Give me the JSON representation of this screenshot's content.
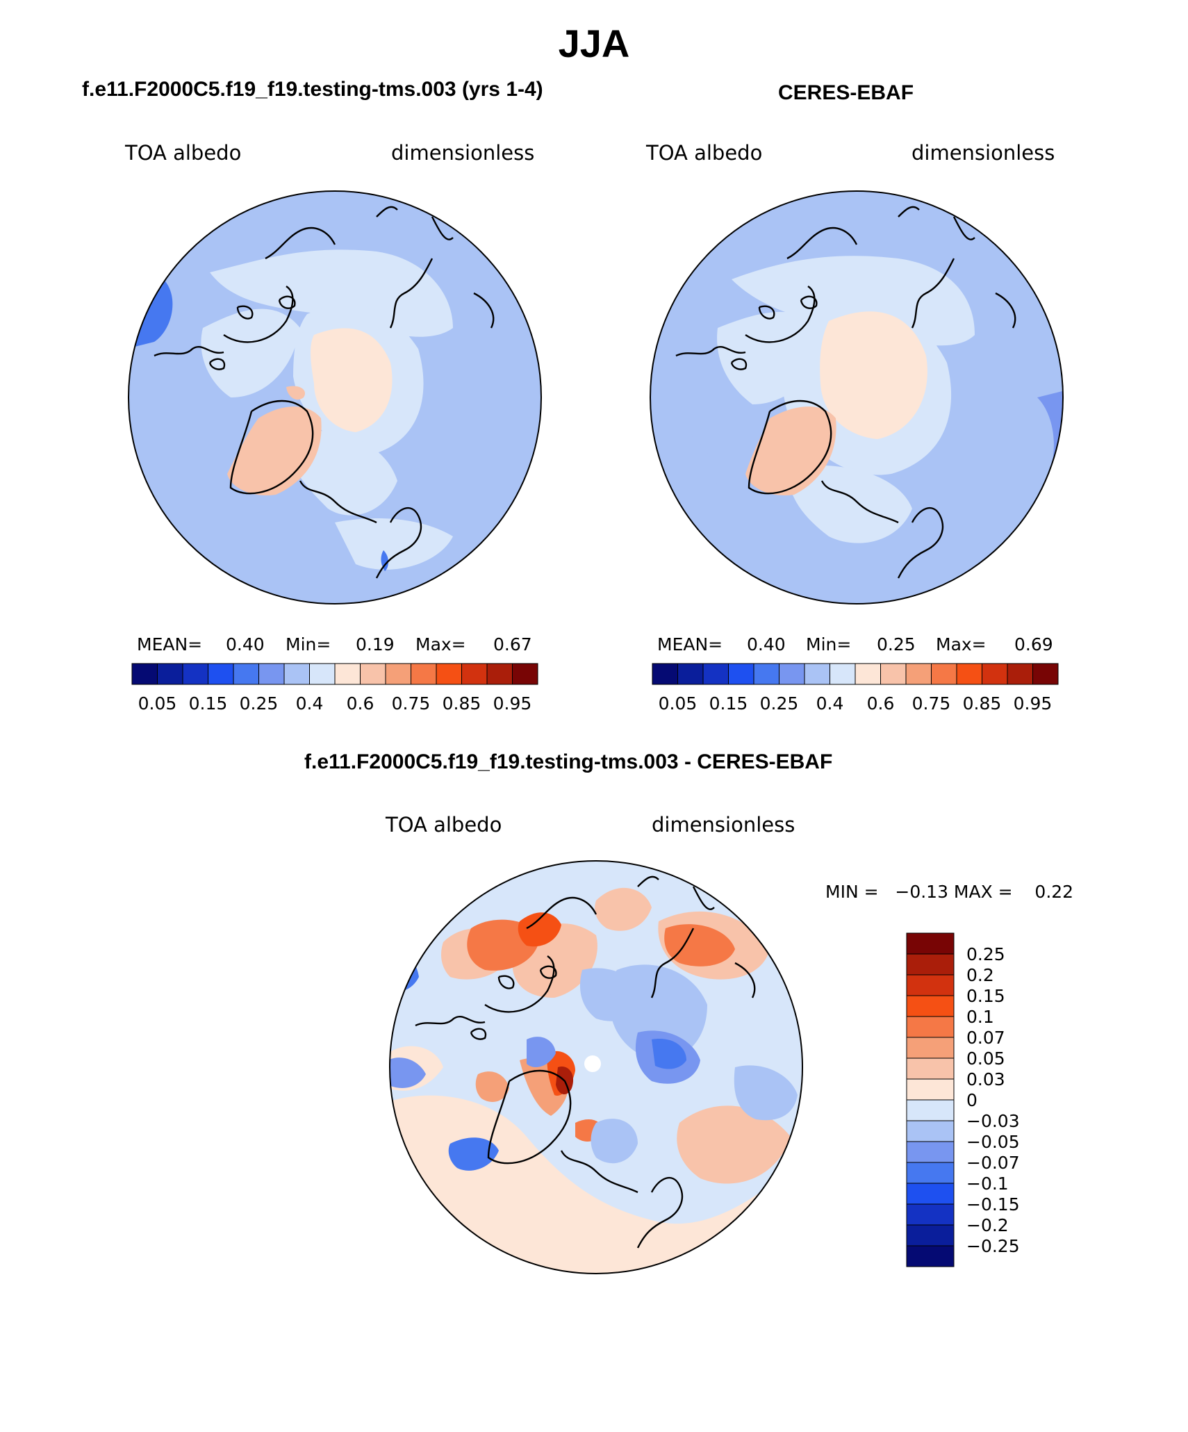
{
  "main_title": "JJA",
  "panels": [
    {
      "title": "f.e11.F2000C5.f19_f19.testing-tms.003 (yrs 1-4)",
      "variable": "TOA albedo",
      "units": "dimensionless",
      "mean_label": "MEAN=",
      "mean_value": "0.40",
      "min_label": "Min=",
      "min_value": "0.19",
      "max_label": "Max=",
      "max_value": "0.67"
    },
    {
      "title": "CERES-EBAF",
      "variable": "TOA albedo",
      "units": "dimensionless",
      "mean_label": "MEAN=",
      "mean_value": "0.40",
      "min_label": "Min=",
      "min_value": "0.25",
      "max_label": "Max=",
      "max_value": "0.69"
    },
    {
      "title": "f.e11.F2000C5.f19_f19.testing-tms.003 - CERES-EBAF",
      "variable": "TOA albedo",
      "units": "dimensionless",
      "minmax_text": "MIN =   −0.13 MAX =    0.22"
    }
  ],
  "colorbar_abs": {
    "labels": [
      "0.05",
      "0.15",
      "0.25",
      "0.4",
      "0.6",
      "0.75",
      "0.85",
      "0.95"
    ],
    "colors": [
      "#050a73",
      "#0a1e9b",
      "#1432c3",
      "#1e50f0",
      "#4678f0",
      "#7896f0",
      "#aac3f5",
      "#d7e6fa",
      "#fde6d7",
      "#f8c3aa",
      "#f5a078",
      "#f57846",
      "#f55014",
      "#d2320f",
      "#aa1e0a",
      "#780505"
    ]
  },
  "colorbar_diff": {
    "labels": [
      "0.25",
      "0.2",
      "0.15",
      "0.1",
      "0.07",
      "0.05",
      "0.03",
      "0",
      "−0.03",
      "−0.05",
      "−0.07",
      "−0.1",
      "−0.15",
      "−0.2",
      "−0.25"
    ],
    "colors": [
      "#780505",
      "#aa1e0a",
      "#d2320f",
      "#f55014",
      "#f57846",
      "#f5a078",
      "#f8c3aa",
      "#fde6d7",
      "#d7e6fa",
      "#aac3f5",
      "#7896f0",
      "#4678f0",
      "#1e50f0",
      "#1432c3",
      "#0a1e9b",
      "#050a73"
    ]
  }
}
